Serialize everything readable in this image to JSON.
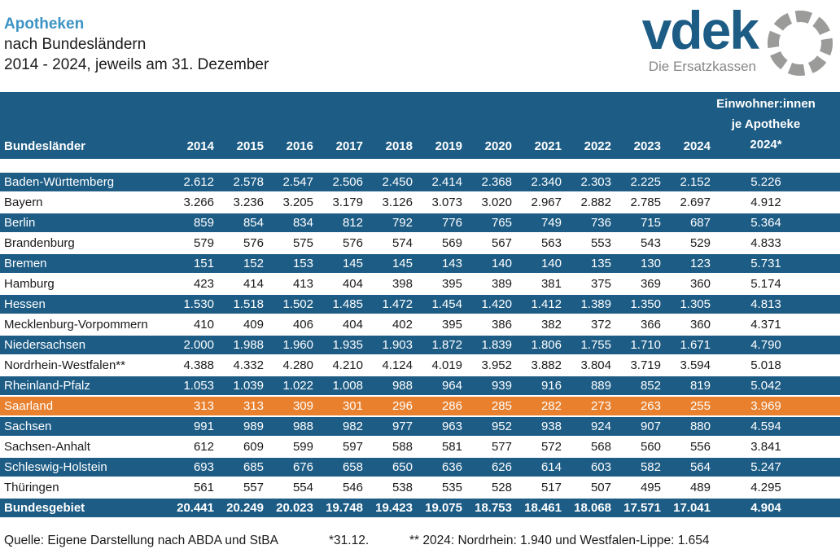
{
  "title": {
    "line1": "Apotheken",
    "line2": "nach Bundesländern",
    "line3": "2014 - 2024, jeweils am 31. Dezember"
  },
  "logo": {
    "word": "vdek",
    "tagline": "Die Ersatzkassen"
  },
  "colors": {
    "table_blue": "#1d5c85",
    "highlight_orange": "#e8802e",
    "title_blue": "#3d93c4",
    "logo_ring_gray": "#9b9b9a"
  },
  "chart_data": {
    "type": "table",
    "title": "Apotheken nach Bundesländern, 2014 - 2024, jeweils am 31. Dezember",
    "row_header": "Bundesländer",
    "year_columns": [
      "2014",
      "2015",
      "2016",
      "2017",
      "2018",
      "2019",
      "2020",
      "2021",
      "2022",
      "2023",
      "2024"
    ],
    "last_column_lines": [
      "Einwohner:innen",
      "je Apotheke",
      "2024*"
    ],
    "rows": [
      {
        "name": "Baden-Württemberg",
        "style": "blue",
        "values": [
          "2.612",
          "2.578",
          "2.547",
          "2.506",
          "2.450",
          "2.414",
          "2.368",
          "2.340",
          "2.303",
          "2.225",
          "2.152"
        ],
        "einwohner_je_apotheke": "5.226"
      },
      {
        "name": "Bayern",
        "style": "white",
        "values": [
          "3.266",
          "3.236",
          "3.205",
          "3.179",
          "3.126",
          "3.073",
          "3.020",
          "2.967",
          "2.882",
          "2.785",
          "2.697"
        ],
        "einwohner_je_apotheke": "4.912"
      },
      {
        "name": "Berlin",
        "style": "blue",
        "values": [
          "859",
          "854",
          "834",
          "812",
          "792",
          "776",
          "765",
          "749",
          "736",
          "715",
          "687"
        ],
        "einwohner_je_apotheke": "5.364"
      },
      {
        "name": "Brandenburg",
        "style": "white",
        "values": [
          "579",
          "576",
          "575",
          "576",
          "574",
          "569",
          "567",
          "563",
          "553",
          "543",
          "529"
        ],
        "einwohner_je_apotheke": "4.833"
      },
      {
        "name": "Bremen",
        "style": "blue",
        "values": [
          "151",
          "152",
          "153",
          "145",
          "145",
          "143",
          "140",
          "140",
          "135",
          "130",
          "123"
        ],
        "einwohner_je_apotheke": "5.731"
      },
      {
        "name": "Hamburg",
        "style": "white",
        "values": [
          "423",
          "414",
          "413",
          "404",
          "398",
          "395",
          "389",
          "381",
          "375",
          "369",
          "360"
        ],
        "einwohner_je_apotheke": "5.174"
      },
      {
        "name": "Hessen",
        "style": "blue",
        "values": [
          "1.530",
          "1.518",
          "1.502",
          "1.485",
          "1.472",
          "1.454",
          "1.420",
          "1.412",
          "1.389",
          "1.350",
          "1.305"
        ],
        "einwohner_je_apotheke": "4.813"
      },
      {
        "name": "Mecklenburg-Vorpommern",
        "style": "white",
        "values": [
          "410",
          "409",
          "406",
          "404",
          "402",
          "395",
          "386",
          "382",
          "372",
          "366",
          "360"
        ],
        "einwohner_je_apotheke": "4.371"
      },
      {
        "name": "Niedersachsen",
        "style": "blue",
        "values": [
          "2.000",
          "1.988",
          "1.960",
          "1.935",
          "1.903",
          "1.872",
          "1.839",
          "1.806",
          "1.755",
          "1.710",
          "1.671"
        ],
        "einwohner_je_apotheke": "4.790"
      },
      {
        "name": "Nordrhein-Westfalen**",
        "style": "white",
        "values": [
          "4.388",
          "4.332",
          "4.280",
          "4.210",
          "4.124",
          "4.019",
          "3.952",
          "3.882",
          "3.804",
          "3.719",
          "3.594"
        ],
        "einwohner_je_apotheke": "5.018"
      },
      {
        "name": "Rheinland-Pfalz",
        "style": "blue",
        "values": [
          "1.053",
          "1.039",
          "1.022",
          "1.008",
          "988",
          "964",
          "939",
          "916",
          "889",
          "852",
          "819"
        ],
        "einwohner_je_apotheke": "5.042"
      },
      {
        "name": "Saarland",
        "style": "orange",
        "values": [
          "313",
          "313",
          "309",
          "301",
          "296",
          "286",
          "285",
          "282",
          "273",
          "263",
          "255"
        ],
        "einwohner_je_apotheke": "3.969"
      },
      {
        "name": "Sachsen",
        "style": "blue",
        "values": [
          "991",
          "989",
          "988",
          "982",
          "977",
          "963",
          "952",
          "938",
          "924",
          "907",
          "880"
        ],
        "einwohner_je_apotheke": "4.594"
      },
      {
        "name": "Sachsen-Anhalt",
        "style": "white",
        "values": [
          "612",
          "609",
          "599",
          "597",
          "588",
          "581",
          "577",
          "572",
          "568",
          "560",
          "556"
        ],
        "einwohner_je_apotheke": "3.841"
      },
      {
        "name": "Schleswig-Holstein",
        "style": "blue",
        "values": [
          "693",
          "685",
          "676",
          "658",
          "650",
          "636",
          "626",
          "614",
          "603",
          "582",
          "564"
        ],
        "einwohner_je_apotheke": "5.247"
      },
      {
        "name": "Thüringen",
        "style": "white",
        "values": [
          "561",
          "557",
          "554",
          "546",
          "538",
          "535",
          "528",
          "517",
          "507",
          "495",
          "489"
        ],
        "einwohner_je_apotheke": "4.295"
      }
    ],
    "total_row": {
      "name": "Bundesgebiet",
      "style": "total",
      "values": [
        "20.441",
        "20.249",
        "20.023",
        "19.748",
        "19.423",
        "19.075",
        "18.753",
        "18.461",
        "18.068",
        "17.571",
        "17.041"
      ],
      "einwohner_je_apotheke": "4.904"
    }
  },
  "footer": {
    "source": "Quelle: Eigene Darstellung nach ABDA und StBA",
    "note_date": "*31.12.",
    "note_nrw": "** 2024: Nordrhein: 1.940 und Westfalen-Lippe: 1.654"
  }
}
